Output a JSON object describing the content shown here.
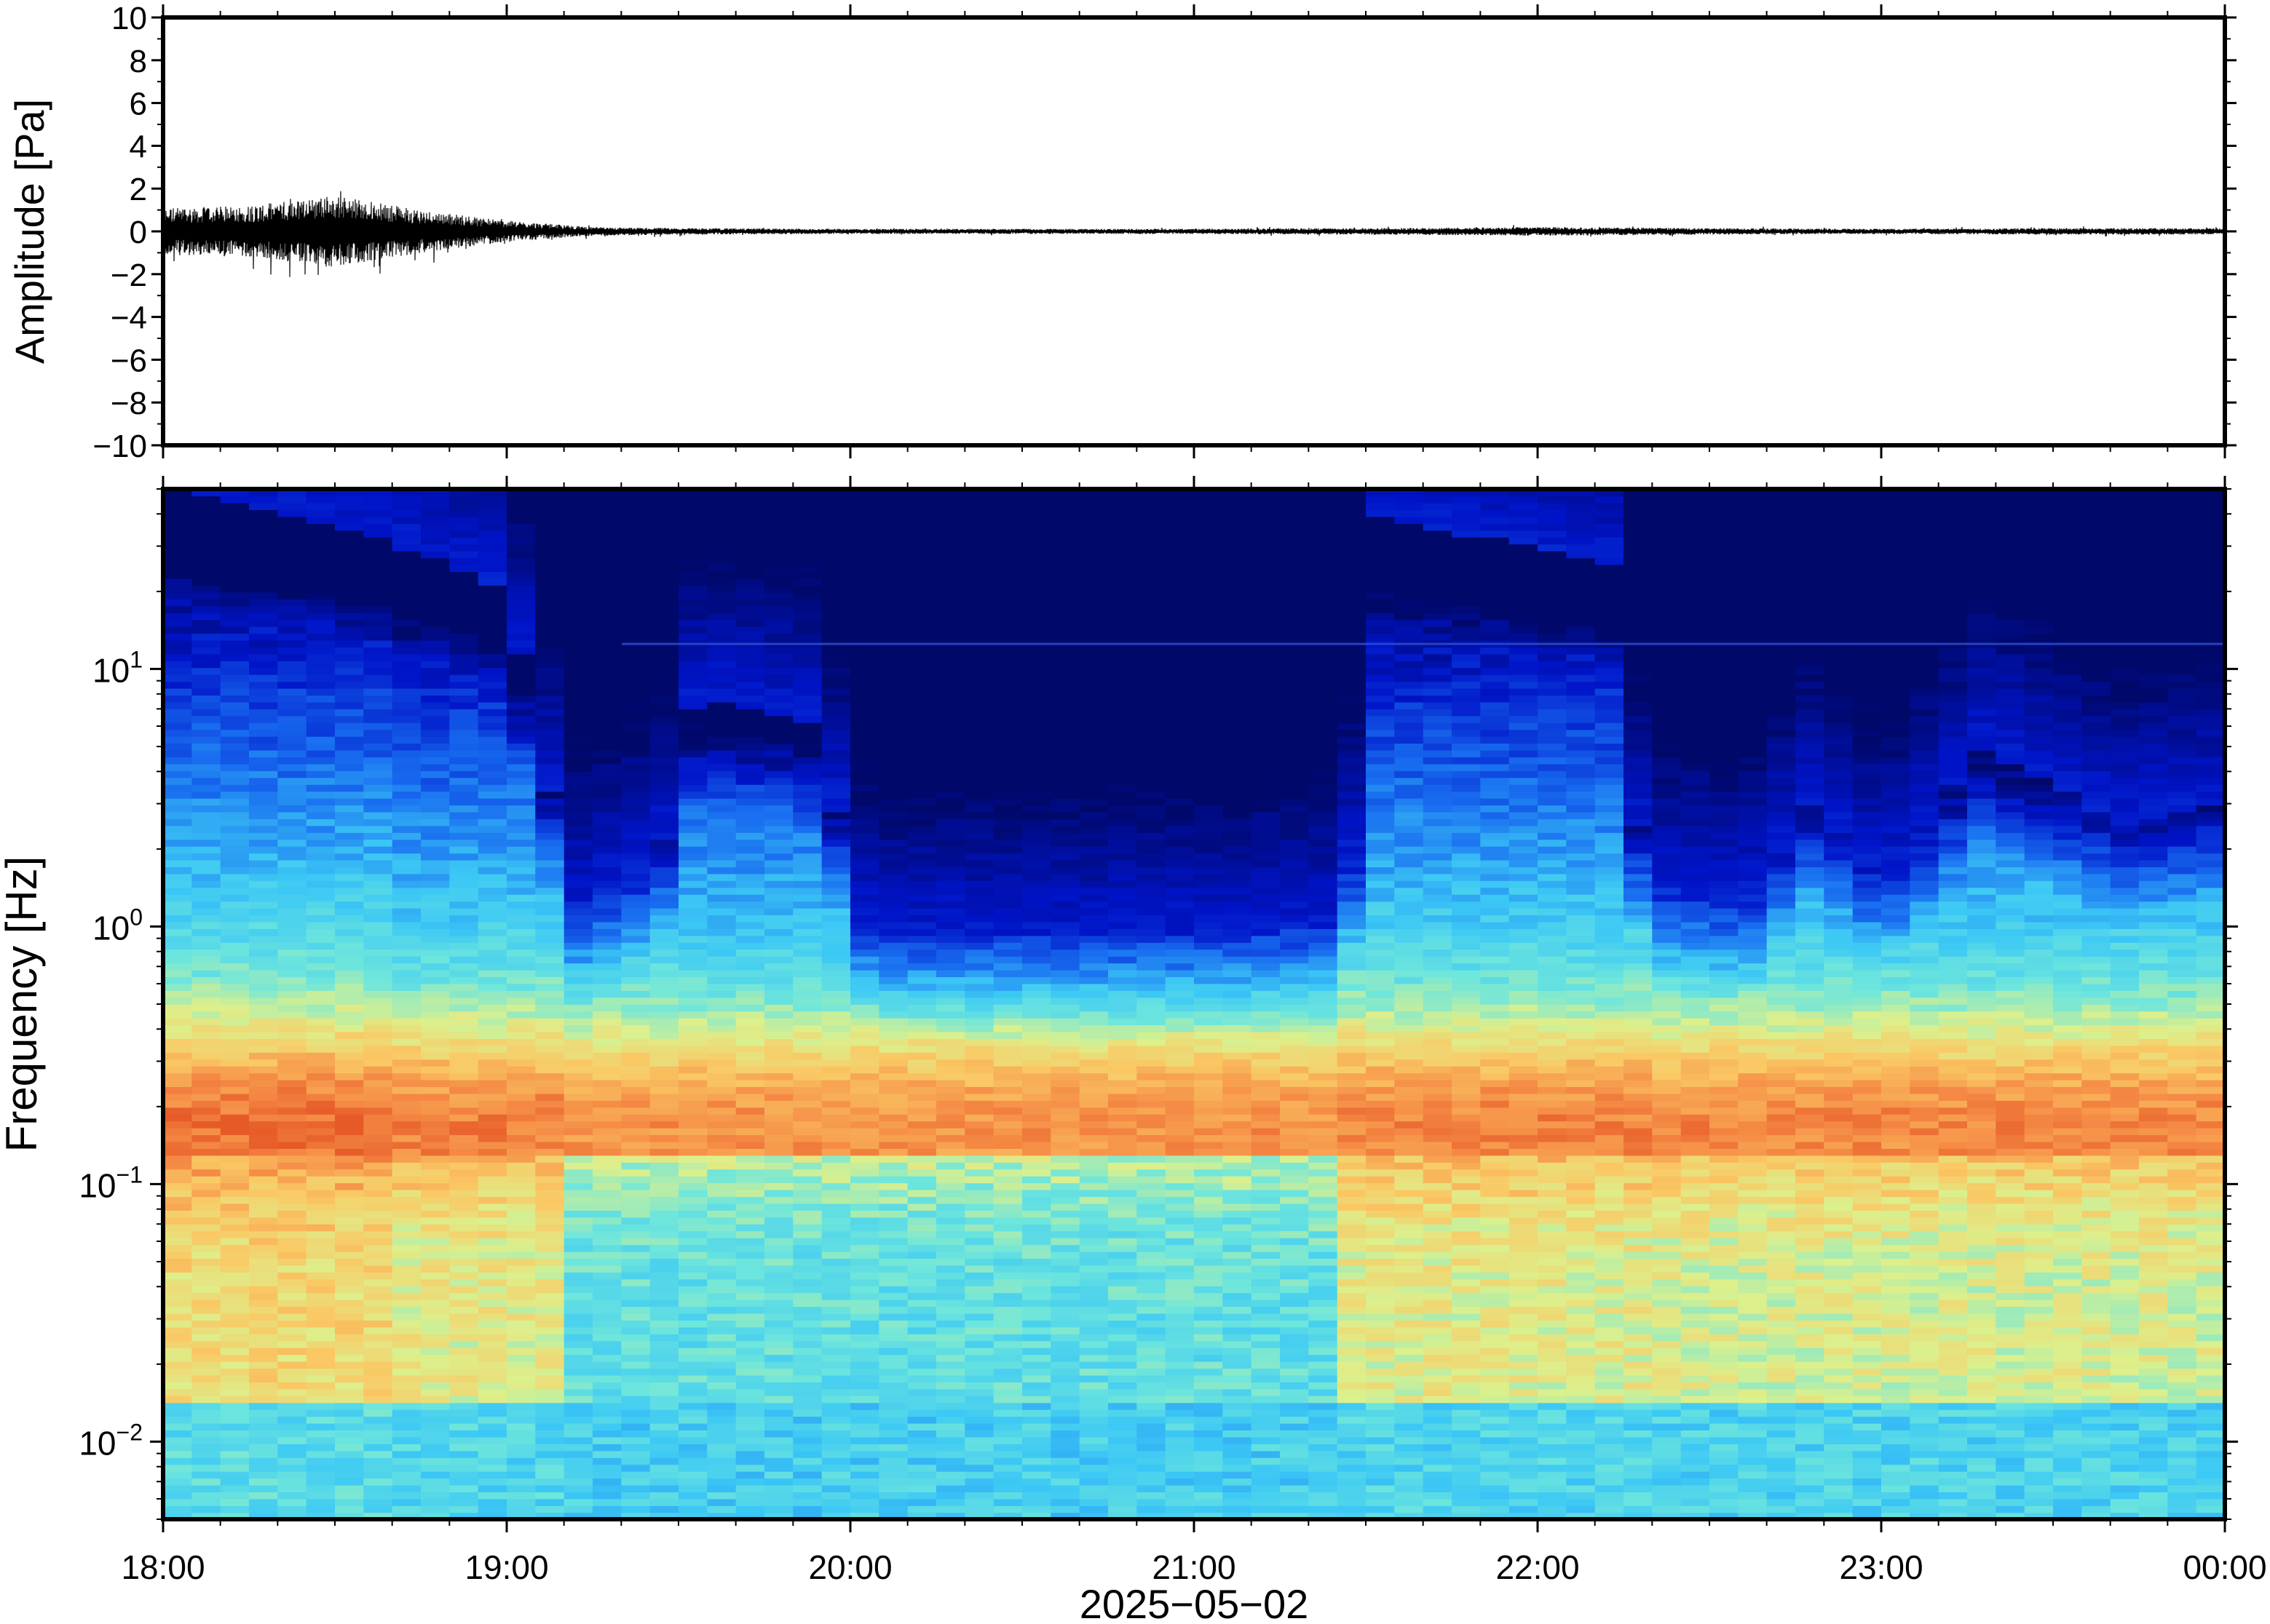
{
  "chart_data": [
    {
      "type": "line",
      "title": "",
      "xlabel": "",
      "ylabel": "Amplitude [Pa]",
      "ylim": [
        -10,
        10
      ],
      "yticks": [
        10,
        8,
        6,
        4,
        2,
        0,
        -2,
        -4,
        -6,
        -8,
        -10
      ],
      "ytick_labels": [
        "10",
        "8",
        "6",
        "4",
        "2",
        "0",
        "−2",
        "−4",
        "−6",
        "−8",
        "−10"
      ],
      "xlim": [
        "18:00",
        "00:00"
      ],
      "grid": false,
      "series": [
        {
          "values_note_hours": [
            0,
            0.25,
            0.5,
            0.75,
            1.0,
            1.25,
            1.5,
            2,
            2.5,
            3,
            3.5,
            4,
            4.5,
            5,
            5.5,
            6
          ],
          "envelope_pa": [
            1.1,
            1.2,
            1.7,
            1.0,
            0.5,
            0.2,
            0.15,
            0.12,
            0.12,
            0.12,
            0.15,
            0.2,
            0.15,
            0.12,
            0.15,
            0.15
          ]
        }
      ]
    },
    {
      "type": "heatmap",
      "title": "",
      "xlabel": "2025−05−02",
      "ylabel": "Frequency [Hz]",
      "yscale": "log",
      "ylim": [
        0.005,
        50
      ],
      "ytick_labels": [
        {
          "base": "10",
          "exp": "1",
          "value": 10
        },
        {
          "base": "10",
          "exp": "0",
          "value": 1
        },
        {
          "base": "10",
          "exp": "−1",
          "value": 0.1
        },
        {
          "base": "10",
          "exp": "−2",
          "value": 0.01
        }
      ],
      "xtick_labels": [
        "18:00",
        "19:00",
        "20:00",
        "21:00",
        "22:00",
        "23:00",
        "00:00"
      ],
      "colormap": "jet",
      "colors": {
        "low": "#000a70",
        "mid_low": "#1466e6",
        "mid": "#5ee0e6",
        "mid_high": "#f0ea80",
        "high": "#f27a3a"
      },
      "quiet_cutoff_hz_by_hour": [
        [
          0.0,
          50
        ],
        [
          0.7,
          30
        ],
        [
          1.0,
          20
        ],
        [
          1.2,
          1.2
        ],
        [
          1.45,
          2.0
        ],
        [
          1.55,
          8
        ],
        [
          1.9,
          6
        ],
        [
          2.05,
          0.9
        ],
        [
          3.0,
          0.9
        ],
        [
          3.45,
          1.0
        ],
        [
          3.5,
          40
        ],
        [
          4.25,
          25
        ],
        [
          4.3,
          1.5
        ],
        [
          4.6,
          1.2
        ],
        [
          4.8,
          3
        ],
        [
          5.0,
          1.5
        ],
        [
          5.3,
          5
        ],
        [
          5.7,
          2.5
        ],
        [
          6.0,
          3
        ]
      ]
    }
  ]
}
